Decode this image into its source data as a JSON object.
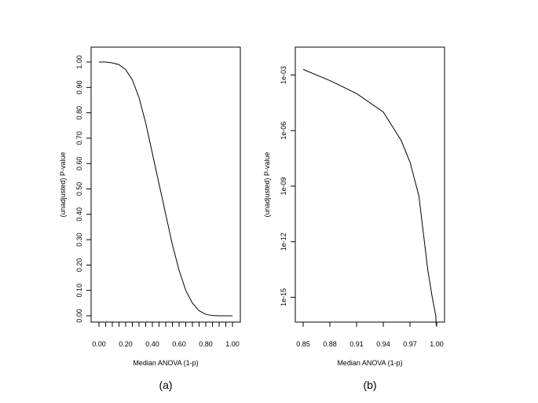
{
  "chart_data": [
    {
      "type": "line",
      "panel_label": "(a)",
      "xlabel": "Median ANOVA (1-p)",
      "ylabel": "(unadjusted) P-value",
      "xlim": [
        0,
        1
      ],
      "ylim": [
        0,
        1
      ],
      "x_ticks": [
        0,
        0.2,
        0.4,
        0.6,
        0.8,
        1.0
      ],
      "x_tick_labels": [
        "0.00",
        "0.20",
        "0.40",
        "0.60",
        "0.80",
        "1.00"
      ],
      "x_minor_ticks": [
        0.05,
        0.1,
        0.15,
        0.25,
        0.3,
        0.35,
        0.45,
        0.5,
        0.55,
        0.65,
        0.7,
        0.75,
        0.85,
        0.9,
        0.95
      ],
      "y_ticks": [
        0,
        0.1,
        0.2,
        0.3,
        0.4,
        0.5,
        0.6,
        0.7,
        0.8,
        0.9,
        1.0
      ],
      "y_tick_labels": [
        "0.00",
        "0.10",
        "0.20",
        "0.30",
        "0.40",
        "0.50",
        "0.60",
        "0.70",
        "0.80",
        "0.90",
        "1.00"
      ],
      "x_scale": "linear",
      "y_scale": "linear",
      "grid": false,
      "series": [
        {
          "x": [
            0.0,
            0.05,
            0.1,
            0.15,
            0.2,
            0.25,
            0.3,
            0.35,
            0.4,
            0.45,
            0.5,
            0.55,
            0.6,
            0.65,
            0.7,
            0.75,
            0.8,
            0.85,
            0.9,
            0.95,
            1.0
          ],
          "y": [
            1.0,
            1.0,
            0.997,
            0.99,
            0.97,
            0.93,
            0.86,
            0.76,
            0.64,
            0.52,
            0.4,
            0.28,
            0.18,
            0.1,
            0.05,
            0.02,
            0.006,
            0.001,
            0.0,
            0.0,
            0.0
          ]
        }
      ]
    },
    {
      "type": "line",
      "panel_label": "(b)",
      "xlabel": "Median ANOVA (1-p)",
      "ylabel": "(unadjusted) P-value",
      "xlim": [
        0.85,
        1.0
      ],
      "ylim": [
        1e-16,
        0.005
      ],
      "x_ticks": [
        0.85,
        0.88,
        0.91,
        0.94,
        0.97,
        1.0
      ],
      "x_tick_labels": [
        "0.85",
        "0.88",
        "0.91",
        "0.94",
        "0.97",
        "1.00"
      ],
      "y_ticks": [
        1e-15,
        1e-12,
        1e-09,
        1e-06,
        0.001
      ],
      "y_tick_labels": [
        "1e-15",
        "1e-12",
        "1e-09",
        "1e-06",
        "1e-03"
      ],
      "x_scale": "linear",
      "y_scale": "log",
      "grid": false,
      "series": [
        {
          "x": [
            0.85,
            0.88,
            0.91,
            0.94,
            0.96,
            0.97,
            0.98,
            0.99,
            0.995,
            0.999,
            0.9995
          ],
          "y": [
            0.002,
            0.0005,
            0.0001,
            1e-05,
            3e-07,
            2e-08,
            3e-10,
            3e-14,
            1e-15,
            1e-16,
            3e-17
          ]
        }
      ]
    }
  ]
}
